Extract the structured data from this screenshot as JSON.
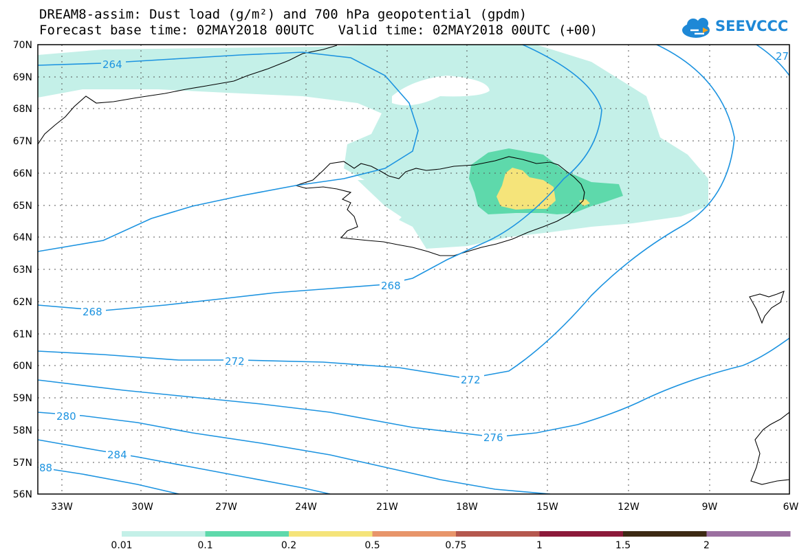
{
  "title_line1": "DREAM8-assim: Dust load (g/m²) and 700 hPa geopotential (gpdm)",
  "title_line2": "Forecast base time: 02MAY2018 00UTC   Valid time: 02MAY2018 00UTC (+00)",
  "logo_text": "SEEVCCC",
  "lat_labels": [
    "70N",
    "69N",
    "68N",
    "67N",
    "66N",
    "65N",
    "64N",
    "63N",
    "62N",
    "61N",
    "60N",
    "59N",
    "58N",
    "57N",
    "56N"
  ],
  "lon_labels": [
    "33W",
    "30W",
    "27W",
    "24W",
    "21W",
    "18W",
    "15W",
    "12W",
    "9W",
    "6W"
  ],
  "contour_labels": [
    "264",
    "268",
    "268",
    "272",
    "272",
    "276",
    "280",
    "284",
    "88",
    "27"
  ],
  "colorbar": {
    "labels": [
      "0.01",
      "0.1",
      "0.2",
      "0.5",
      "0.75",
      "1",
      "1.5",
      "2"
    ],
    "colors": [
      "#c4f0e8",
      "#5ed9ab",
      "#f5e47a",
      "#e8956a",
      "#b5584e",
      "#8c1a3a",
      "#3d2a14",
      "#9b6fa0"
    ]
  },
  "colors": {
    "contour": "#1c93e0",
    "light_dust": "#c4f0e8",
    "medium_dust": "#5ed9ab",
    "high_dust": "#f5e47a",
    "coast": "#000000"
  }
}
